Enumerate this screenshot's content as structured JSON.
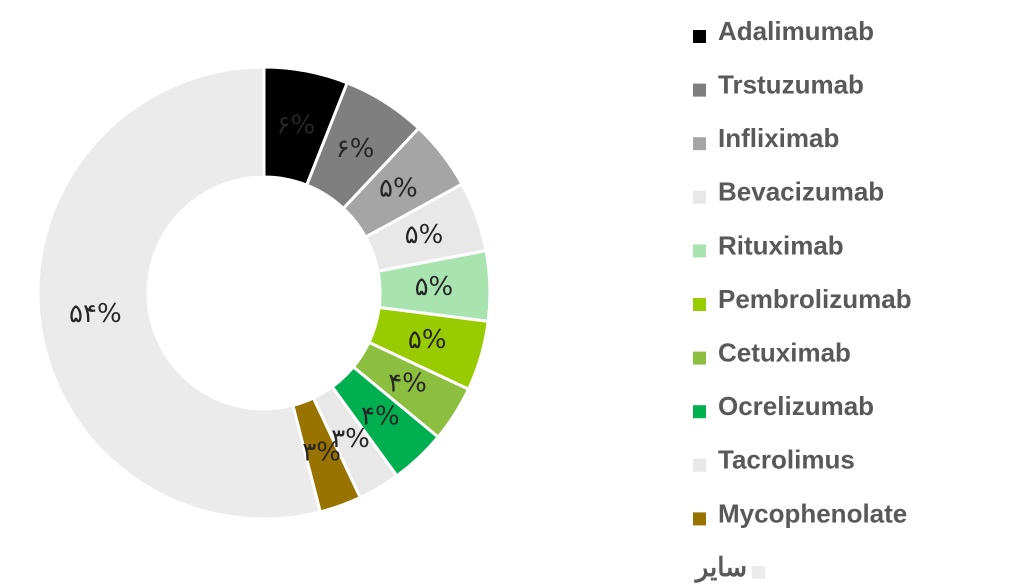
{
  "chart_data": {
    "type": "donut",
    "categories": [
      "Adalimumab",
      "Trstuzumab",
      "Infliximab",
      "Bevacizumab",
      "Rituximab",
      "Pembrolizumab",
      "Cetuximab",
      "Ocrelizumab",
      "Tacrolimus",
      "Mycophenolate",
      "سایر"
    ],
    "values": [
      6,
      6,
      5,
      5,
      5,
      5,
      4,
      4,
      3,
      3,
      54
    ],
    "value_labels": [
      "۶%",
      "۶%",
      "۵%",
      "۵%",
      "۵%",
      "۵%",
      "۴%",
      "۴%",
      "۳%",
      "۳%",
      "۵۴%"
    ],
    "colors": [
      "#000000",
      "#7f7f7f",
      "#a5a5a5",
      "#e8e8e8",
      "#a9e4b0",
      "#99cc00",
      "#8cbf3f",
      "#00b050",
      "#e8e8e8",
      "#997300",
      "#ebebeb"
    ],
    "legend": "right"
  }
}
